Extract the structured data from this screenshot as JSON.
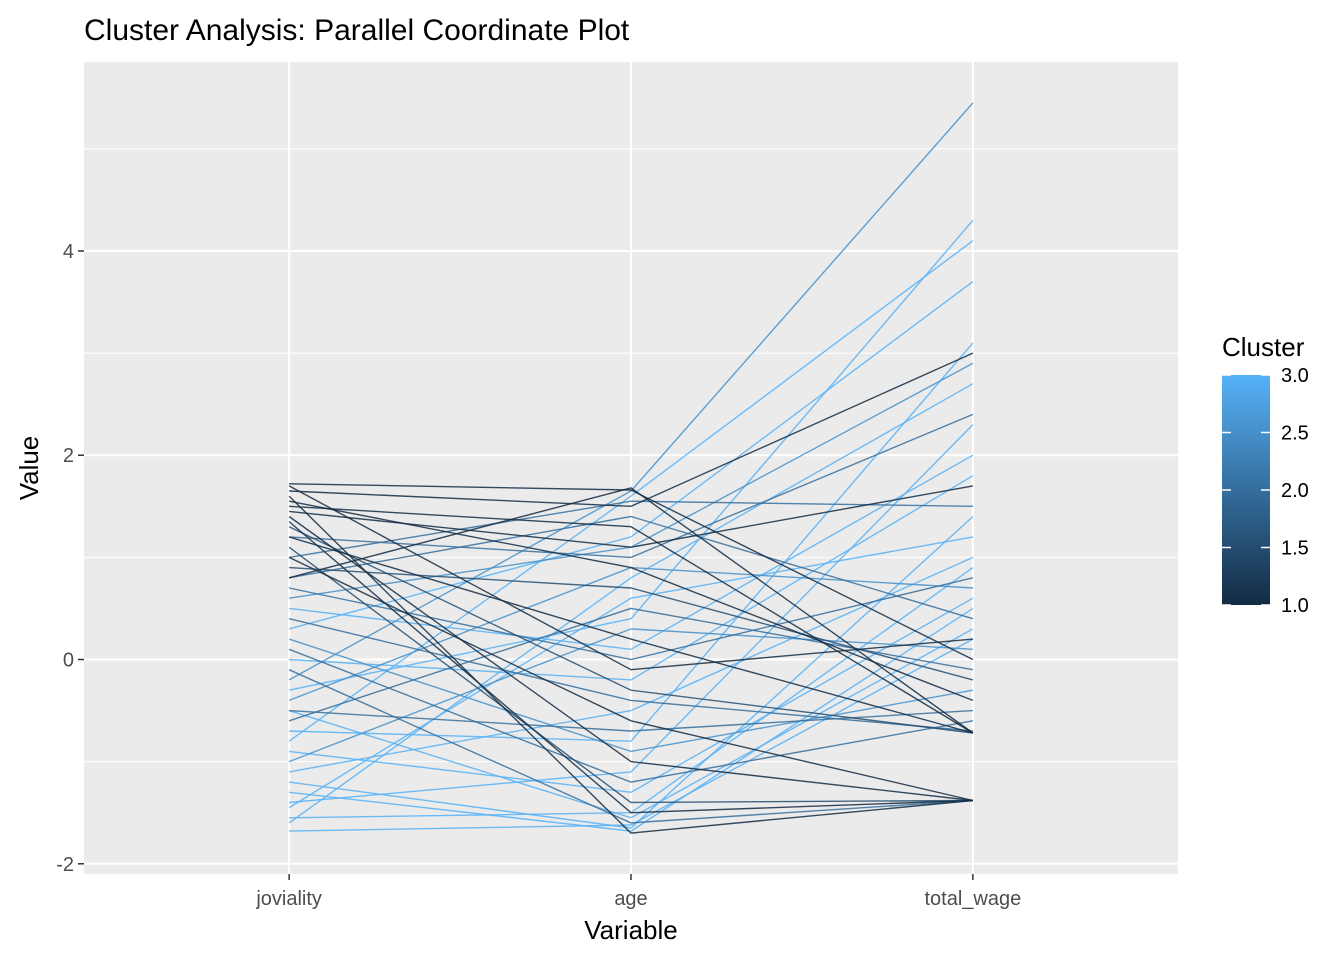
{
  "chart_data": {
    "type": "line",
    "subtype": "parallel-coordinates",
    "title": "Cluster Analysis: Parallel Coordinate Plot",
    "xlabel": "Variable",
    "ylabel": "Value",
    "categories": [
      "joviality",
      "age",
      "total_wage"
    ],
    "ylim": [
      -2.1,
      5.85
    ],
    "y_ticks": [
      -2,
      0,
      2,
      4
    ],
    "y_tick_labels": [
      "-2",
      "0",
      "2",
      "4"
    ],
    "grid": true,
    "legend": {
      "title": "Cluster",
      "placement": "right",
      "type": "colorbar",
      "range": [
        1.0,
        3.0
      ],
      "ticks": [
        1.0,
        1.5,
        2.0,
        2.5,
        3.0
      ],
      "tick_labels": [
        "1.0",
        "1.5",
        "2.0",
        "2.5",
        "3.0"
      ],
      "color_low": "#132B43",
      "color_high": "#56B1F7"
    },
    "series_summary": {
      "joviality_range": [
        -1.7,
        1.72
      ],
      "age_range": [
        -1.7,
        1.68
      ],
      "total_wage_range": [
        -1.4,
        5.45
      ]
    },
    "series": [
      {
        "cluster": 3,
        "values": [
          -1.68,
          -1.62,
          0.2
        ]
      },
      {
        "cluster": 3,
        "values": [
          -1.55,
          -1.5,
          0.9
        ]
      },
      {
        "cluster": 3,
        "values": [
          -1.4,
          -1.1,
          2.3
        ]
      },
      {
        "cluster": 3,
        "values": [
          -1.2,
          -1.65,
          1.4
        ]
      },
      {
        "cluster": 3,
        "values": [
          -0.9,
          -1.3,
          0.6
        ]
      },
      {
        "cluster": 3,
        "values": [
          -0.7,
          -0.8,
          3.1
        ]
      },
      {
        "cluster": 3,
        "values": [
          -0.5,
          -1.55,
          0.3
        ]
      },
      {
        "cluster": 3,
        "values": [
          -0.3,
          0.4,
          4.3
        ]
      },
      {
        "cluster": 3,
        "values": [
          0.0,
          -0.2,
          1.8
        ]
      },
      {
        "cluster": 3,
        "values": [
          0.3,
          1.2,
          3.7
        ]
      },
      {
        "cluster": 3,
        "values": [
          -1.6,
          0.8,
          2.7
        ]
      },
      {
        "cluster": 3,
        "values": [
          -1.1,
          -0.5,
          1.0
        ]
      },
      {
        "cluster": 3,
        "values": [
          -0.8,
          1.6,
          4.1
        ]
      },
      {
        "cluster": 3,
        "values": [
          -1.3,
          -1.68,
          0.5
        ]
      },
      {
        "cluster": 3,
        "values": [
          0.5,
          0.1,
          2.0
        ]
      },
      {
        "cluster": 3,
        "values": [
          -1.45,
          0.6,
          1.2
        ]
      },
      {
        "cluster": 2.5,
        "values": [
          -0.2,
          1.65,
          5.45
        ]
      },
      {
        "cluster": 2.5,
        "values": [
          0.6,
          1.1,
          2.9
        ]
      },
      {
        "cluster": 2.5,
        "values": [
          -0.4,
          0.9,
          0.7
        ]
      },
      {
        "cluster": 2.5,
        "values": [
          0.2,
          -0.9,
          -0.3
        ]
      },
      {
        "cluster": 2.5,
        "values": [
          -1.0,
          0.3,
          0.1
        ]
      },
      {
        "cluster": 2,
        "values": [
          0.8,
          1.4,
          0.4
        ]
      },
      {
        "cluster": 2,
        "values": [
          0.1,
          -1.2,
          -0.6
        ]
      },
      {
        "cluster": 2,
        "values": [
          -0.6,
          0.5,
          -0.1
        ]
      },
      {
        "cluster": 2,
        "values": [
          0.4,
          -0.4,
          -0.7
        ]
      },
      {
        "cluster": 2,
        "values": [
          1.0,
          1.55,
          1.5
        ]
      },
      {
        "cluster": 2,
        "values": [
          -0.1,
          -1.6,
          -1.38
        ]
      },
      {
        "cluster": 2,
        "values": [
          0.7,
          0.0,
          0.8
        ]
      },
      {
        "cluster": 2,
        "values": [
          -0.5,
          -0.7,
          -0.5
        ]
      },
      {
        "cluster": 2,
        "values": [
          1.2,
          1.0,
          2.4
        ]
      },
      {
        "cluster": 1.5,
        "values": [
          1.1,
          -1.4,
          -1.38
        ]
      },
      {
        "cluster": 1.5,
        "values": [
          0.9,
          0.7,
          -0.2
        ]
      },
      {
        "cluster": 1.5,
        "values": [
          1.3,
          -0.3,
          -0.72
        ]
      },
      {
        "cluster": 1,
        "values": [
          1.72,
          1.66,
          0.0
        ]
      },
      {
        "cluster": 1,
        "values": [
          1.6,
          -1.7,
          -1.38
        ]
      },
      {
        "cluster": 1,
        "values": [
          1.5,
          1.3,
          -0.72
        ]
      },
      {
        "cluster": 1,
        "values": [
          1.4,
          -1.0,
          -1.38
        ]
      },
      {
        "cluster": 1,
        "values": [
          1.2,
          0.2,
          -0.72
        ]
      },
      {
        "cluster": 1,
        "values": [
          1.65,
          1.5,
          3.0
        ]
      },
      {
        "cluster": 1,
        "values": [
          1.0,
          -0.6,
          -1.38
        ]
      },
      {
        "cluster": 1,
        "values": [
          1.55,
          0.9,
          -0.4
        ]
      },
      {
        "cluster": 1,
        "values": [
          1.35,
          -1.5,
          -1.38
        ]
      },
      {
        "cluster": 1,
        "values": [
          0.8,
          1.68,
          -0.72
        ]
      },
      {
        "cluster": 1,
        "values": [
          1.7,
          -0.1,
          0.2
        ]
      },
      {
        "cluster": 1,
        "values": [
          1.45,
          1.1,
          1.7
        ]
      }
    ]
  }
}
